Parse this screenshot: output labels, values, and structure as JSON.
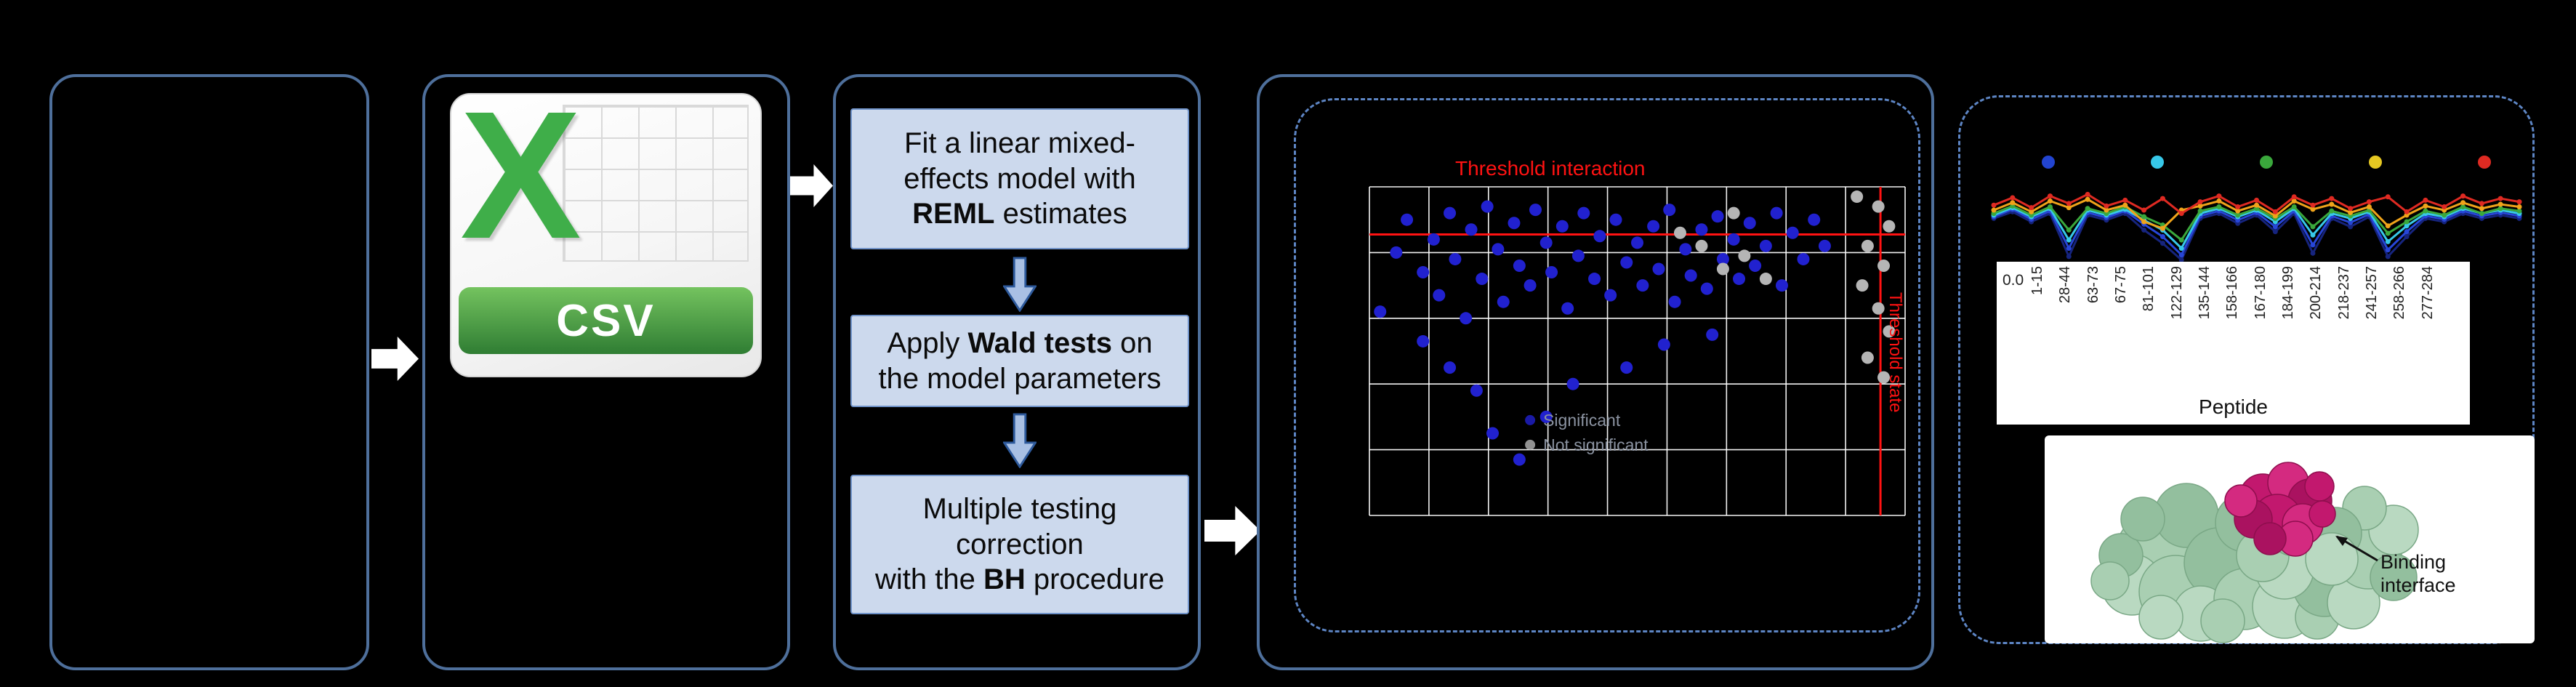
{
  "colors": {
    "background": "#000000",
    "panel_border": "#4e6f9b",
    "dashed_border": "#5d85c4",
    "step_fill": "#ccd9ed",
    "step_border": "#6f92c8",
    "flow_arrow": "#ffffff",
    "threshold": "#ff1212",
    "grid_line": "#ffffff"
  },
  "csv_card": {
    "x_letter": "X",
    "label": "CSV",
    "x_color": "#3fae49"
  },
  "workflow": {
    "steps": [
      {
        "name": "fit-model",
        "segments": [
          {
            "t": "Fit a linear mixed-\neffects model with\n",
            "b": false
          },
          {
            "t": "REML",
            "b": true
          },
          {
            "t": " estimates",
            "b": false
          }
        ]
      },
      {
        "name": "wald-tests",
        "segments": [
          {
            "t": "Apply ",
            "b": false
          },
          {
            "t": "Wald tests",
            "b": true
          },
          {
            "t": " on\nthe model parameters",
            "b": false
          }
        ]
      },
      {
        "name": "bh-correction",
        "segments": [
          {
            "t": "Multiple testing\ncorrection\nwith the ",
            "b": false
          },
          {
            "t": "BH",
            "b": true
          },
          {
            "t": " procedure",
            "b": false
          }
        ]
      }
    ]
  },
  "protein": {
    "annotation": "Binding\ninterface",
    "surface_shades": [
      "#a9cfb2",
      "#93bf9e",
      "#b9d9c1"
    ],
    "interface_shades": [
      "#c2186e",
      "#d42a80",
      "#aa1260"
    ]
  },
  "chart_data": [
    {
      "type": "scatter",
      "title": "",
      "grid": {
        "show": true,
        "cols": 9,
        "rows": 5
      },
      "thresholds": {
        "h_frac": 0.145,
        "v_frac": 0.954,
        "horizontal_label": "Threshold interaction",
        "vertical_label": "Threshold state",
        "color": "#ff1212"
      },
      "legend": [
        {
          "label": "Significant",
          "color": "#2121cf"
        },
        {
          "label": "Not significant",
          "color": "#b5b5b5"
        }
      ],
      "legend_pos": {
        "x": 0.3,
        "y": 0.71
      },
      "series": [
        {
          "name": "significant-peptides",
          "color": "#2121cf",
          "points": [
            [
              0.02,
              0.38
            ],
            [
              0.05,
              0.2
            ],
            [
              0.07,
              0.1
            ],
            [
              0.1,
              0.26
            ],
            [
              0.12,
              0.16
            ],
            [
              0.13,
              0.33
            ],
            [
              0.15,
              0.08
            ],
            [
              0.16,
              0.22
            ],
            [
              0.18,
              0.4
            ],
            [
              0.19,
              0.13
            ],
            [
              0.21,
              0.28
            ],
            [
              0.22,
              0.06
            ],
            [
              0.24,
              0.19
            ],
            [
              0.25,
              0.35
            ],
            [
              0.27,
              0.11
            ],
            [
              0.28,
              0.24
            ],
            [
              0.3,
              0.3
            ],
            [
              0.31,
              0.07
            ],
            [
              0.33,
              0.17
            ],
            [
              0.34,
              0.26
            ],
            [
              0.36,
              0.12
            ],
            [
              0.37,
              0.37
            ],
            [
              0.39,
              0.21
            ],
            [
              0.4,
              0.08
            ],
            [
              0.42,
              0.28
            ],
            [
              0.43,
              0.15
            ],
            [
              0.45,
              0.33
            ],
            [
              0.46,
              0.1
            ],
            [
              0.48,
              0.23
            ],
            [
              0.5,
              0.17
            ],
            [
              0.51,
              0.3
            ],
            [
              0.53,
              0.12
            ],
            [
              0.54,
              0.25
            ],
            [
              0.56,
              0.07
            ],
            [
              0.57,
              0.35
            ],
            [
              0.59,
              0.19
            ],
            [
              0.6,
              0.27
            ],
            [
              0.62,
              0.13
            ],
            [
              0.63,
              0.31
            ],
            [
              0.65,
              0.09
            ],
            [
              0.66,
              0.22
            ],
            [
              0.68,
              0.16
            ],
            [
              0.69,
              0.28
            ],
            [
              0.71,
              0.11
            ],
            [
              0.72,
              0.24
            ],
            [
              0.74,
              0.18
            ],
            [
              0.76,
              0.08
            ],
            [
              0.77,
              0.3
            ],
            [
              0.79,
              0.14
            ],
            [
              0.81,
              0.22
            ],
            [
              0.83,
              0.1
            ],
            [
              0.85,
              0.18
            ],
            [
              0.1,
              0.47
            ],
            [
              0.15,
              0.55
            ],
            [
              0.2,
              0.62
            ],
            [
              0.23,
              0.75
            ],
            [
              0.28,
              0.83
            ],
            [
              0.33,
              0.7
            ],
            [
              0.38,
              0.6
            ],
            [
              0.48,
              0.55
            ],
            [
              0.55,
              0.48
            ],
            [
              0.64,
              0.45
            ]
          ]
        },
        {
          "name": "not-significant-peptides",
          "color": "#b5b5b5",
          "points": [
            [
              0.91,
              0.03
            ],
            [
              0.95,
              0.06
            ],
            [
              0.97,
              0.12
            ],
            [
              0.93,
              0.18
            ],
            [
              0.96,
              0.24
            ],
            [
              0.92,
              0.3
            ],
            [
              0.95,
              0.37
            ],
            [
              0.97,
              0.44
            ],
            [
              0.93,
              0.52
            ],
            [
              0.96,
              0.58
            ],
            [
              0.58,
              0.14
            ],
            [
              0.62,
              0.18
            ],
            [
              0.66,
              0.25
            ],
            [
              0.7,
              0.21
            ],
            [
              0.74,
              0.28
            ],
            [
              0.68,
              0.08
            ]
          ]
        }
      ]
    },
    {
      "type": "line",
      "x_axis_label": "Peptide",
      "ylabel_tick": "0.0",
      "x_tick_labels": [
        "1-15",
        "28-44",
        "63-73",
        "67-75",
        "81-101",
        "122-129",
        "135-144",
        "158-166",
        "167-180",
        "184-199",
        "200-214",
        "218-237",
        "241-257",
        "258-266",
        "277-284"
      ],
      "marker_colors": [
        "#2244d0",
        "#37c8e8",
        "#3aa83c",
        "#e6c822",
        "#df2a22"
      ],
      "series": [
        {
          "name": "series-1",
          "color": "#16247e",
          "values": [
            0.46,
            0.38,
            0.5,
            0.4,
            0.92,
            0.42,
            0.48,
            0.4,
            0.6,
            0.76,
            0.96,
            0.46,
            0.4,
            0.52,
            0.42,
            0.62,
            0.4,
            0.88,
            0.46,
            0.56,
            0.44,
            0.92,
            0.68,
            0.46,
            0.5,
            0.4,
            0.46,
            0.42,
            0.46
          ]
        },
        {
          "name": "series-2",
          "color": "#2746d8",
          "values": [
            0.44,
            0.35,
            0.47,
            0.37,
            0.82,
            0.39,
            0.45,
            0.37,
            0.53,
            0.68,
            0.9,
            0.43,
            0.37,
            0.48,
            0.39,
            0.56,
            0.37,
            0.78,
            0.43,
            0.51,
            0.41,
            0.84,
            0.62,
            0.43,
            0.47,
            0.37,
            0.43,
            0.39,
            0.43
          ]
        },
        {
          "name": "series-3",
          "color": "#37c8e8",
          "values": [
            0.42,
            0.33,
            0.44,
            0.34,
            0.72,
            0.36,
            0.42,
            0.35,
            0.48,
            0.6,
            0.82,
            0.4,
            0.34,
            0.44,
            0.36,
            0.5,
            0.34,
            0.66,
            0.4,
            0.46,
            0.38,
            0.74,
            0.55,
            0.4,
            0.44,
            0.34,
            0.4,
            0.36,
            0.4
          ]
        },
        {
          "name": "series-4",
          "color": "#3aa83c",
          "values": [
            0.4,
            0.31,
            0.42,
            0.32,
            0.6,
            0.34,
            0.4,
            0.32,
            0.44,
            0.54,
            0.72,
            0.37,
            0.32,
            0.42,
            0.34,
            0.46,
            0.32,
            0.56,
            0.37,
            0.43,
            0.36,
            0.64,
            0.5,
            0.37,
            0.42,
            0.32,
            0.4,
            0.34,
            0.37
          ]
        },
        {
          "name": "series-5",
          "color": "#f0a31a",
          "values": [
            0.36,
            0.27,
            0.38,
            0.25,
            0.33,
            0.23,
            0.36,
            0.3,
            0.5,
            0.58,
            0.36,
            0.31,
            0.25,
            0.37,
            0.3,
            0.43,
            0.25,
            0.35,
            0.29,
            0.39,
            0.32,
            0.55,
            0.42,
            0.31,
            0.36,
            0.27,
            0.34,
            0.29,
            0.32
          ]
        },
        {
          "name": "series-6",
          "color": "#df2a22",
          "values": [
            0.3,
            0.21,
            0.33,
            0.19,
            0.28,
            0.17,
            0.31,
            0.24,
            0.36,
            0.22,
            0.4,
            0.26,
            0.19,
            0.32,
            0.24,
            0.38,
            0.2,
            0.3,
            0.22,
            0.34,
            0.26,
            0.2,
            0.38,
            0.24,
            0.32,
            0.19,
            0.28,
            0.22,
            0.26
          ]
        }
      ]
    }
  ]
}
